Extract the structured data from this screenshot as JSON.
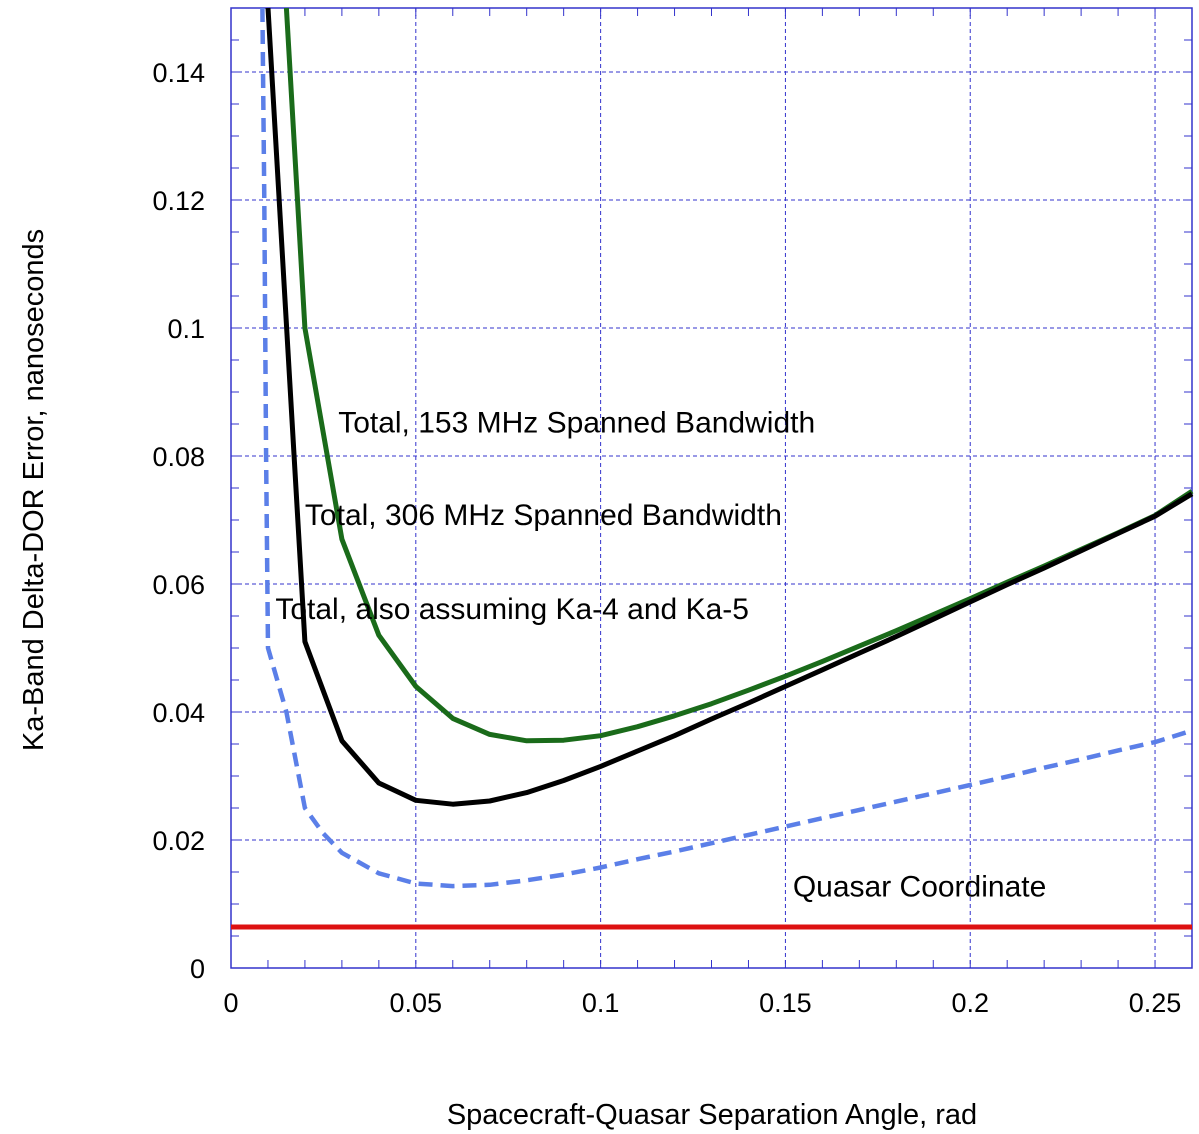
{
  "chart_data": {
    "type": "line",
    "title": "",
    "xlabel": "Spacecraft-Quasar Separation Angle, rad",
    "ylabel": "Ka-Band Delta-DOR Error, nanoseconds",
    "xlim": [
      0,
      0.26
    ],
    "ylim": [
      0,
      0.15
    ],
    "x_ticks": [
      0,
      0.05,
      0.1,
      0.15,
      0.2,
      0.25
    ],
    "x_tick_labels": [
      "0",
      "0.05",
      "0.1",
      "0.15",
      "0.2",
      "0.25"
    ],
    "y_ticks": [
      0,
      0.02,
      0.04,
      0.06,
      0.08,
      0.1,
      0.12,
      0.14
    ],
    "y_tick_labels": [
      "0",
      "0.02",
      "0.04",
      "0.06",
      "0.08",
      "0.1",
      "0.12",
      "0.14"
    ],
    "grid": true,
    "series": [
      {
        "name": "Total, 153 MHz Spanned Bandwidth",
        "color": "#1a6b1a",
        "style": "solid",
        "x": [
          0.015,
          0.02,
          0.03,
          0.04,
          0.05,
          0.06,
          0.07,
          0.08,
          0.09,
          0.1,
          0.11,
          0.12,
          0.13,
          0.14,
          0.15,
          0.16,
          0.17,
          0.18,
          0.19,
          0.2,
          0.21,
          0.22,
          0.23,
          0.24,
          0.25,
          0.26
        ],
        "y": [
          0.15,
          0.1,
          0.067,
          0.052,
          0.044,
          0.039,
          0.0365,
          0.0355,
          0.0356,
          0.0363,
          0.0377,
          0.0394,
          0.0413,
          0.0434,
          0.0456,
          0.0479,
          0.0503,
          0.0527,
          0.0552,
          0.0577,
          0.0603,
          0.0628,
          0.0654,
          0.068,
          0.0707,
          0.0745
        ]
      },
      {
        "name": "Total, 306 MHz Spanned Bandwidth",
        "color": "#000000",
        "style": "solid",
        "x": [
          0.01,
          0.02,
          0.03,
          0.04,
          0.05,
          0.06,
          0.07,
          0.08,
          0.09,
          0.1,
          0.11,
          0.12,
          0.13,
          0.14,
          0.15,
          0.16,
          0.17,
          0.18,
          0.19,
          0.2,
          0.21,
          0.22,
          0.23,
          0.24,
          0.25,
          0.26
        ],
        "y": [
          0.15,
          0.051,
          0.0355,
          0.0289,
          0.0262,
          0.0256,
          0.0261,
          0.0274,
          0.0293,
          0.0315,
          0.0339,
          0.0363,
          0.0389,
          0.0414,
          0.044,
          0.0466,
          0.0492,
          0.0518,
          0.0545,
          0.0572,
          0.0599,
          0.0625,
          0.0652,
          0.0679,
          0.0706,
          0.0741
        ]
      },
      {
        "name": "Total, also assuming Ka-4 and Ka-5",
        "color": "#5b7fe8",
        "style": "dashed",
        "x": [
          0.0085,
          0.009,
          0.0095,
          0.01,
          0.015,
          0.02,
          0.025,
          0.03,
          0.04,
          0.05,
          0.06,
          0.07,
          0.08,
          0.09,
          0.1,
          0.11,
          0.12,
          0.13,
          0.14,
          0.15,
          0.16,
          0.17,
          0.18,
          0.19,
          0.2,
          0.21,
          0.22,
          0.23,
          0.24,
          0.25,
          0.26
        ],
        "y": [
          0.15,
          0.12,
          0.08,
          0.05,
          0.04,
          0.025,
          0.021,
          0.018,
          0.0148,
          0.0132,
          0.0128,
          0.013,
          0.0137,
          0.0146,
          0.0157,
          0.017,
          0.0182,
          0.0195,
          0.0208,
          0.0221,
          0.0234,
          0.0247,
          0.026,
          0.0273,
          0.0286,
          0.0299,
          0.0313,
          0.0326,
          0.034,
          0.0353,
          0.0371
        ]
      },
      {
        "name": "Quasar Coordinate",
        "color": "#dd1111",
        "style": "solid",
        "x": [
          0,
          0.26
        ],
        "y": [
          0.0064,
          0.0064
        ]
      }
    ],
    "annotations": [
      {
        "text": "Total, 153 MHz Spanned Bandwidth",
        "x": 0.029,
        "y": 0.0837
      },
      {
        "text": "Total, 306 MHz Spanned Bandwidth",
        "x": 0.02,
        "y": 0.0692
      },
      {
        "text": "Total, also assuming Ka-4 and Ka-5",
        "x": 0.012,
        "y": 0.0545
      },
      {
        "text": "Quasar Coordinate",
        "x": 0.152,
        "y": 0.0112
      }
    ]
  }
}
